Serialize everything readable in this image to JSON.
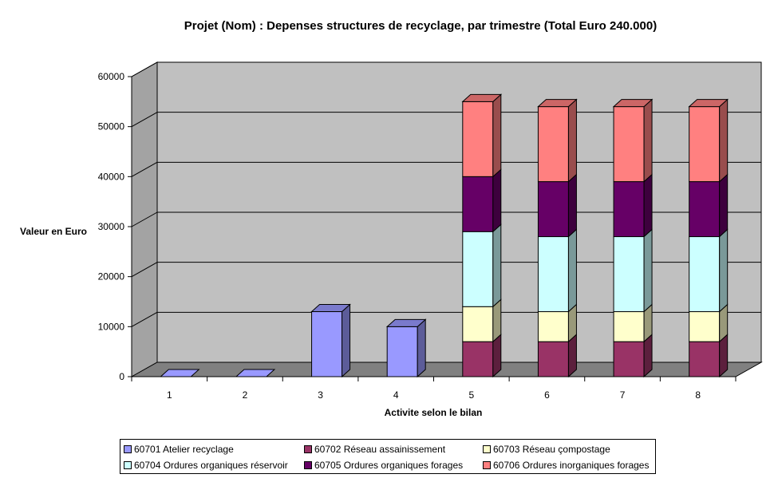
{
  "chart_data": {
    "type": "bar",
    "stacked": true,
    "three_d": true,
    "title": "Projet (Nom) : Depenses structures de recyclage, par trimestre (Total Euro 240.000)",
    "xlabel": "Activite selon le bilan",
    "ylabel": "Valeur en Euro",
    "ylim": [
      0,
      60000
    ],
    "yticks": [
      "0",
      "10000",
      "20000",
      "30000",
      "40000",
      "50000",
      "60000"
    ],
    "categories": [
      "1",
      "2",
      "3",
      "4",
      "5",
      "6",
      "7",
      "8"
    ],
    "series": [
      {
        "name": "60701 Atelier recyclage",
        "color": "#9999FF",
        "values": [
          0,
          0,
          13000,
          10000,
          0,
          0,
          0,
          0
        ]
      },
      {
        "name": "60702 Réseau assainissement",
        "color": "#993366",
        "values": [
          0,
          0,
          0,
          0,
          7000,
          7000,
          7000,
          7000
        ]
      },
      {
        "name": "60703 Réseau çompostage",
        "color": "#FFFFCC",
        "values": [
          0,
          0,
          0,
          0,
          7000,
          6000,
          6000,
          6000
        ]
      },
      {
        "name": "60704 Ordures organiques réservoir",
        "color": "#CCFFFF",
        "values": [
          0,
          0,
          0,
          0,
          15000,
          15000,
          15000,
          15000
        ]
      },
      {
        "name": "60705 Ordures organiques forages",
        "color": "#660066",
        "values": [
          0,
          0,
          0,
          0,
          11000,
          11000,
          11000,
          11000
        ]
      },
      {
        "name": "60706 Ordures inorganiques forages",
        "color": "#FF8080",
        "values": [
          0,
          0,
          0,
          0,
          15000,
          15000,
          15000,
          15000
        ]
      }
    ],
    "grid": true,
    "legend_position": "bottom",
    "colors": {
      "wall": "#C0C0C0",
      "floor": "#808080"
    }
  }
}
